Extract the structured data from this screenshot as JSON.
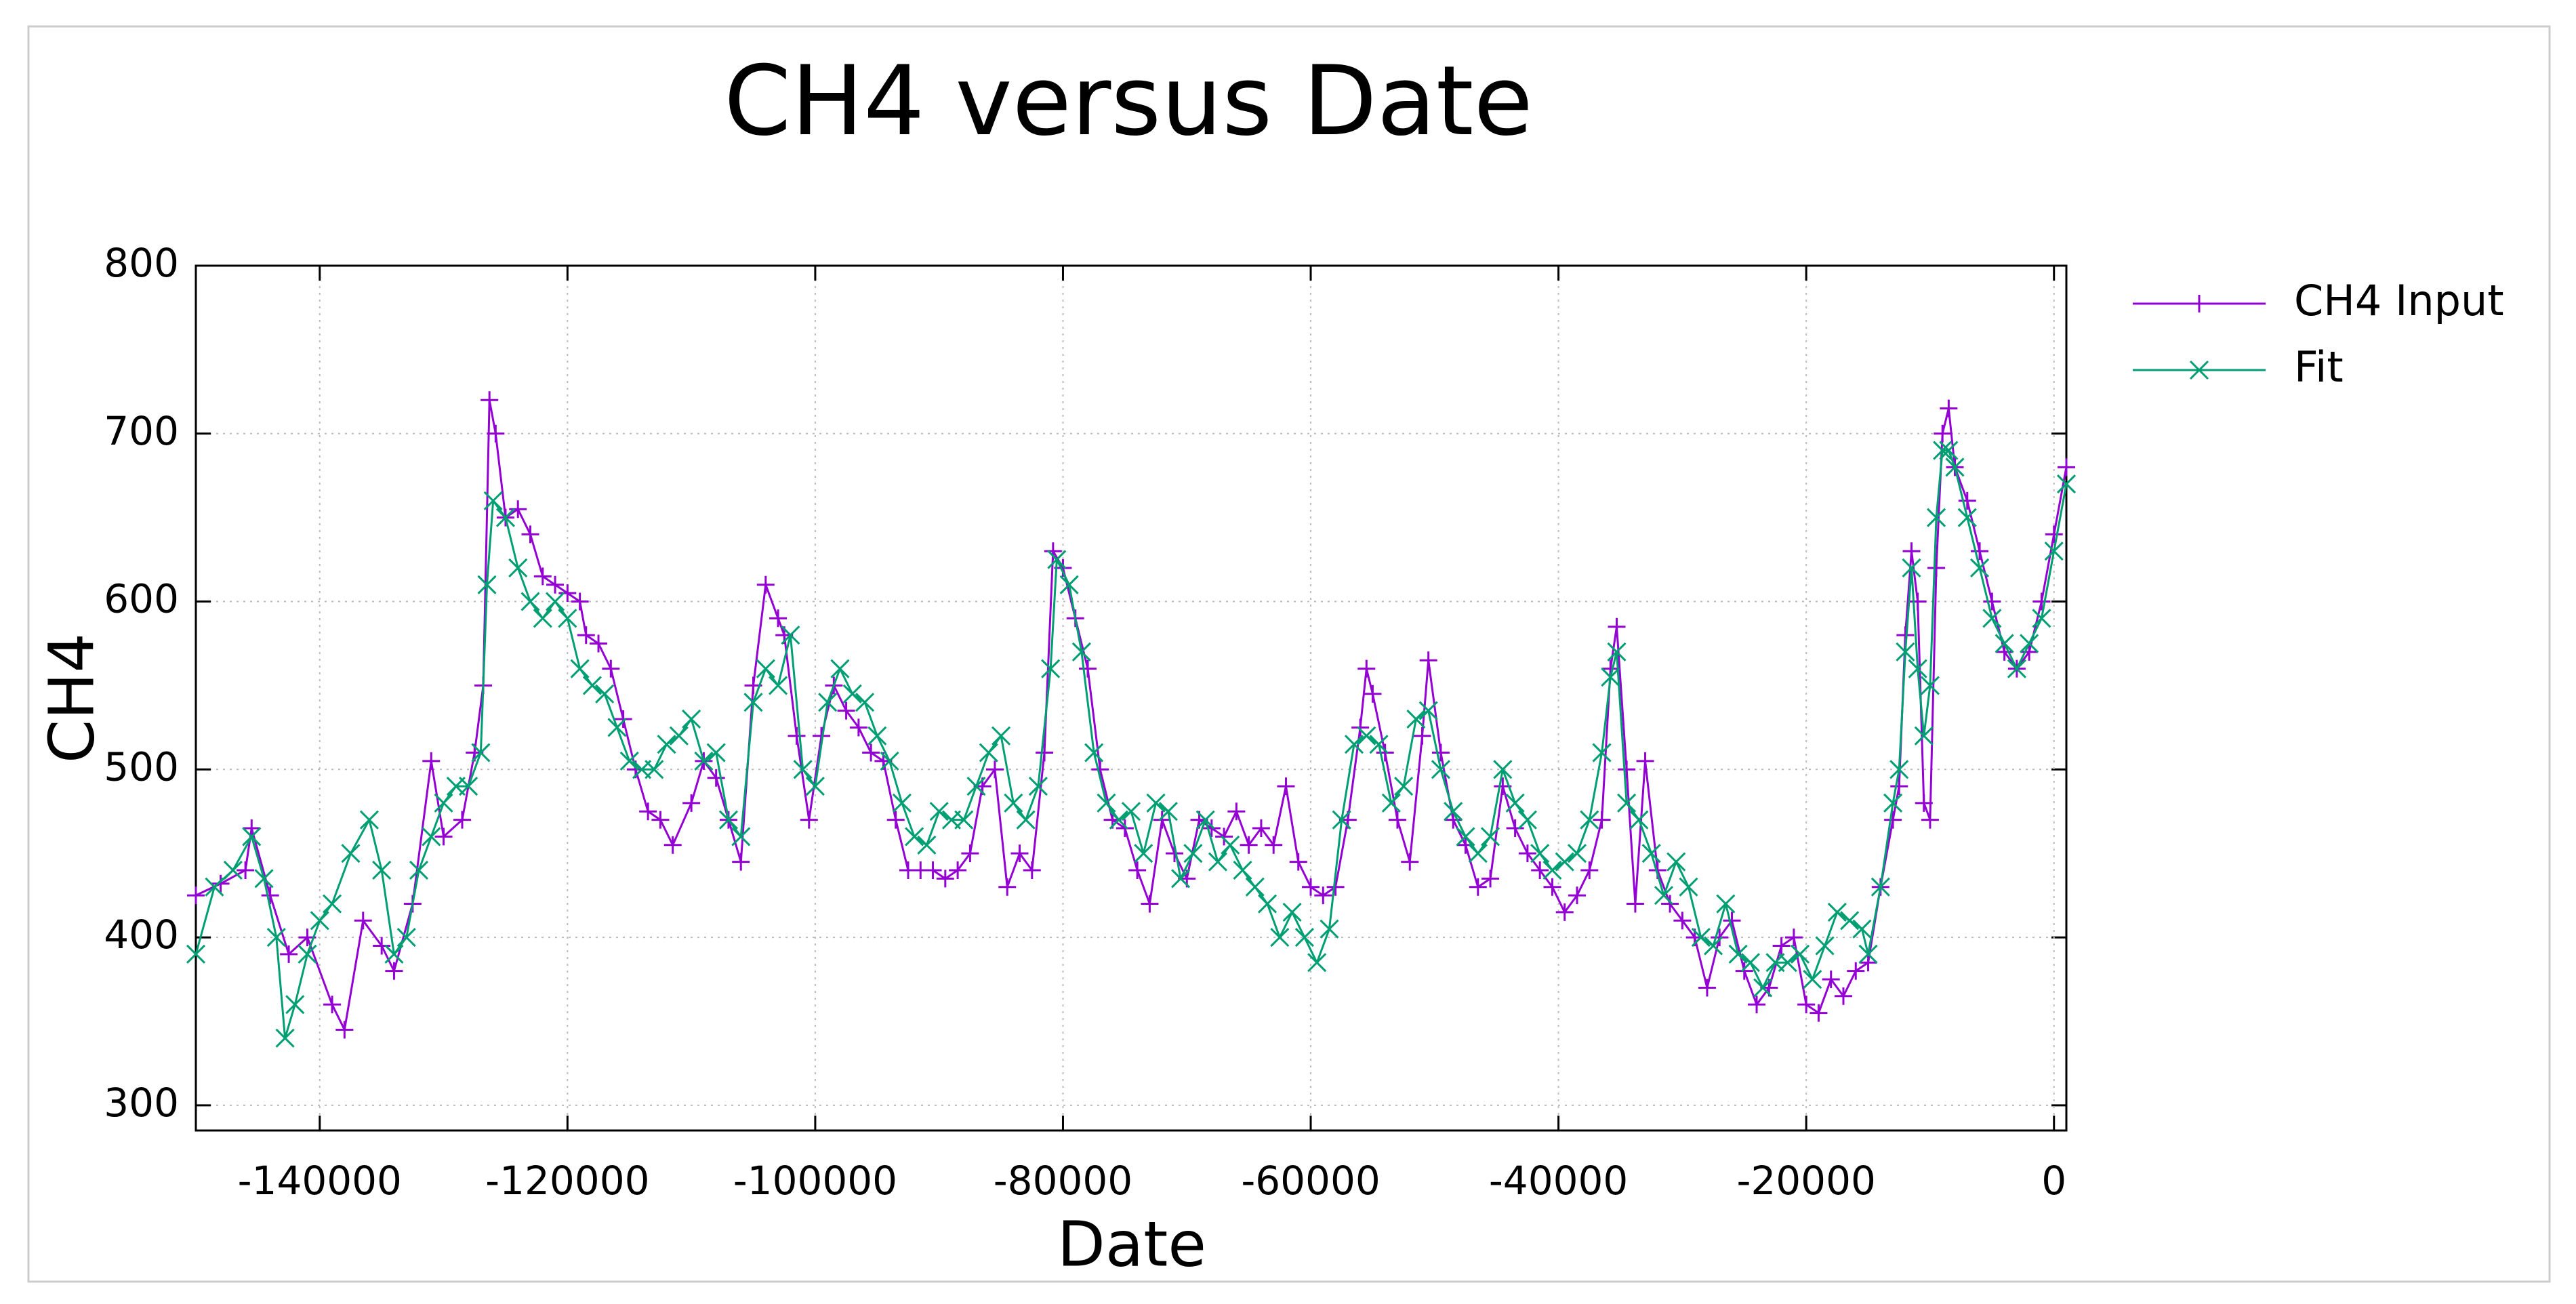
{
  "chart_data": {
    "type": "line",
    "title": "CH4 versus Date",
    "xlabel": "Date",
    "ylabel": "CH4",
    "xlim": [
      -150000,
      1000
    ],
    "ylim": [
      285,
      800
    ],
    "xticks": [
      -140000,
      -120000,
      -100000,
      -80000,
      -60000,
      -40000,
      -20000,
      0
    ],
    "yticks": [
      300,
      400,
      500,
      600,
      700,
      800
    ],
    "grid": true,
    "legend": "outside-right",
    "series": [
      {
        "name": "CH4 Input",
        "color": "#9400d3",
        "marker": "plus",
        "x": [
          -150000,
          -148000,
          -146000,
          -145500,
          -144000,
          -142500,
          -141000,
          -139000,
          -138000,
          -136500,
          -135000,
          -134000,
          -132500,
          -131000,
          -130000,
          -128500,
          -127500,
          -126800,
          -126300,
          -125800,
          -125000,
          -124000,
          -123000,
          -122000,
          -121000,
          -120000,
          -119000,
          -118500,
          -117500,
          -116500,
          -115500,
          -114500,
          -113500,
          -112500,
          -111500,
          -110000,
          -109000,
          -108000,
          -107000,
          -106000,
          -105000,
          -104000,
          -103000,
          -102500,
          -101500,
          -100500,
          -99500,
          -98500,
          -97500,
          -96500,
          -95500,
          -94500,
          -93500,
          -92500,
          -91500,
          -90500,
          -89500,
          -88500,
          -87500,
          -86500,
          -85500,
          -84500,
          -83500,
          -82500,
          -81500,
          -80800,
          -80000,
          -79000,
          -78000,
          -77000,
          -76000,
          -75000,
          -74000,
          -73000,
          -72000,
          -71000,
          -70000,
          -69000,
          -68000,
          -67000,
          -66000,
          -65000,
          -64000,
          -63000,
          -62000,
          -61000,
          -60000,
          -59000,
          -58000,
          -57000,
          -56000,
          -55500,
          -55000,
          -54000,
          -53000,
          -52000,
          -51000,
          -50500,
          -49500,
          -48500,
          -47500,
          -46500,
          -45500,
          -44500,
          -43500,
          -42500,
          -41500,
          -40500,
          -39500,
          -38500,
          -37500,
          -36500,
          -35800,
          -35300,
          -34500,
          -33800,
          -33000,
          -32000,
          -31000,
          -30000,
          -29000,
          -28000,
          -27000,
          -26000,
          -25000,
          -24000,
          -23000,
          -22000,
          -21000,
          -20000,
          -19000,
          -18000,
          -17000,
          -16000,
          -15000,
          -14000,
          -13000,
          -12500,
          -12000,
          -11500,
          -11000,
          -10500,
          -10000,
          -9500,
          -9000,
          -8500,
          -8000,
          -7000,
          -6000,
          -5000,
          -4000,
          -3000,
          -2000,
          -1000,
          0,
          1000
        ],
        "values": [
          425,
          432,
          440,
          465,
          425,
          390,
          400,
          360,
          345,
          410,
          395,
          380,
          420,
          505,
          460,
          470,
          510,
          550,
          720,
          700,
          650,
          655,
          640,
          615,
          610,
          605,
          600,
          580,
          575,
          560,
          530,
          500,
          475,
          470,
          455,
          480,
          505,
          495,
          470,
          445,
          550,
          610,
          590,
          580,
          520,
          470,
          520,
          550,
          535,
          525,
          510,
          505,
          470,
          440,
          440,
          440,
          435,
          440,
          450,
          490,
          500,
          430,
          450,
          440,
          510,
          630,
          620,
          590,
          560,
          500,
          470,
          465,
          440,
          420,
          470,
          450,
          435,
          470,
          465,
          460,
          475,
          455,
          465,
          455,
          490,
          445,
          430,
          425,
          430,
          470,
          525,
          560,
          545,
          510,
          470,
          445,
          520,
          565,
          510,
          470,
          455,
          430,
          435,
          490,
          465,
          450,
          440,
          430,
          415,
          425,
          440,
          470,
          560,
          585,
          500,
          420,
          505,
          440,
          420,
          410,
          400,
          370,
          400,
          410,
          380,
          360,
          370,
          395,
          400,
          360,
          355,
          375,
          365,
          380,
          385,
          430,
          470,
          490,
          580,
          630,
          600,
          480,
          470,
          620,
          700,
          715,
          680,
          660,
          630,
          600,
          570,
          560,
          570,
          600,
          640,
          680
        ]
      },
      {
        "name": "Fit",
        "color": "#009e73",
        "marker": "cross",
        "x": [
          -150000,
          -148500,
          -147000,
          -145500,
          -144500,
          -143500,
          -142800,
          -142000,
          -141000,
          -140000,
          -139000,
          -137500,
          -136000,
          -135000,
          -134000,
          -133000,
          -132000,
          -131000,
          -130000,
          -129000,
          -128000,
          -127000,
          -126500,
          -126000,
          -125000,
          -124000,
          -123000,
          -122000,
          -121000,
          -120000,
          -119000,
          -118000,
          -117000,
          -116000,
          -115000,
          -114000,
          -113000,
          -112000,
          -111000,
          -110000,
          -109000,
          -108000,
          -107000,
          -106000,
          -105000,
          -104000,
          -103000,
          -102000,
          -101000,
          -100000,
          -99000,
          -98000,
          -97000,
          -96000,
          -95000,
          -94000,
          -93000,
          -92000,
          -91000,
          -90000,
          -89000,
          -88000,
          -87000,
          -86000,
          -85000,
          -84000,
          -83000,
          -82000,
          -81000,
          -80500,
          -79500,
          -78500,
          -77500,
          -76500,
          -75500,
          -74500,
          -73500,
          -72500,
          -71500,
          -70500,
          -69500,
          -68500,
          -67500,
          -66500,
          -65500,
          -64500,
          -63500,
          -62500,
          -61500,
          -60500,
          -59500,
          -58500,
          -57500,
          -56500,
          -55500,
          -54500,
          -53500,
          -52500,
          -51500,
          -50500,
          -49500,
          -48500,
          -47500,
          -46500,
          -45500,
          -44500,
          -43500,
          -42500,
          -41500,
          -40500,
          -39500,
          -38500,
          -37500,
          -36500,
          -35800,
          -35300,
          -34500,
          -33500,
          -32500,
          -31500,
          -30500,
          -29500,
          -28500,
          -27500,
          -26500,
          -25500,
          -24500,
          -23500,
          -22500,
          -21500,
          -20500,
          -19500,
          -18500,
          -17500,
          -16500,
          -15500,
          -15000,
          -14000,
          -13000,
          -12500,
          -12000,
          -11500,
          -11000,
          -10500,
          -10000,
          -9500,
          -9000,
          -8500,
          -8000,
          -7000,
          -6000,
          -5000,
          -4000,
          -3000,
          -2000,
          -1000,
          0,
          1000
        ],
        "values": [
          390,
          430,
          440,
          460,
          435,
          400,
          340,
          360,
          390,
          410,
          420,
          450,
          470,
          440,
          390,
          400,
          440,
          460,
          480,
          490,
          490,
          510,
          610,
          660,
          650,
          620,
          600,
          590,
          600,
          590,
          560,
          550,
          545,
          525,
          505,
          500,
          500,
          515,
          520,
          530,
          505,
          510,
          470,
          460,
          540,
          560,
          550,
          580,
          500,
          490,
          540,
          560,
          545,
          540,
          520,
          505,
          480,
          460,
          455,
          475,
          470,
          470,
          490,
          510,
          520,
          480,
          470,
          490,
          560,
          625,
          610,
          570,
          510,
          480,
          470,
          475,
          450,
          480,
          475,
          435,
          450,
          470,
          445,
          455,
          440,
          430,
          420,
          400,
          415,
          400,
          385,
          405,
          470,
          515,
          520,
          515,
          480,
          490,
          530,
          535,
          500,
          475,
          460,
          450,
          460,
          500,
          480,
          470,
          450,
          440,
          445,
          450,
          470,
          510,
          555,
          570,
          480,
          470,
          450,
          425,
          445,
          430,
          400,
          395,
          420,
          390,
          385,
          370,
          385,
          385,
          390,
          375,
          395,
          415,
          410,
          405,
          390,
          430,
          480,
          500,
          570,
          620,
          560,
          520,
          550,
          650,
          690,
          690,
          680,
          650,
          620,
          590,
          575,
          560,
          575,
          590,
          630,
          670
        ]
      }
    ]
  }
}
